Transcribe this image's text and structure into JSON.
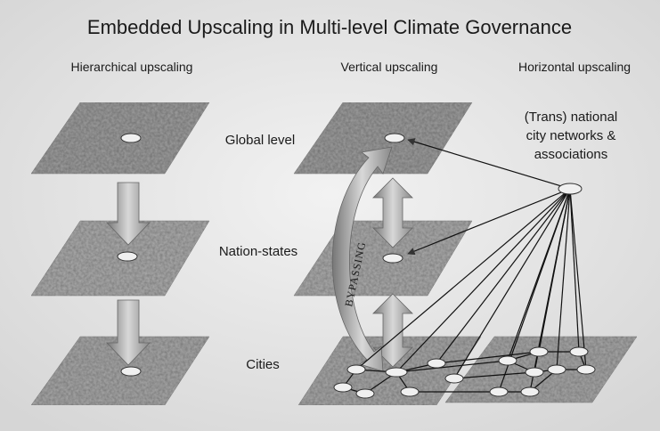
{
  "title": "Embedded Upscaling in Multi-level Climate Governance",
  "columns": [
    "Hierarchical upscaling",
    "Vertical upscaling",
    "Horizontal upscaling"
  ],
  "levels": [
    "Global level",
    "Nation-states",
    "Cities"
  ],
  "network_label": [
    "(Trans) national",
    "city networks &",
    "associations"
  ],
  "bypass_label": "BYPASSING"
}
